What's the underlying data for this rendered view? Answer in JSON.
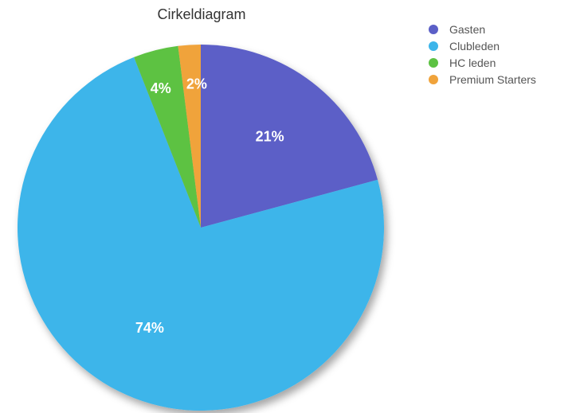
{
  "chart_data": {
    "type": "pie",
    "title": "Cirkeldiagram",
    "categories": [
      "Gasten",
      "Clubleden",
      "HC leden",
      "Premium Starters"
    ],
    "values": [
      21,
      74,
      4,
      2
    ],
    "value_labels": [
      "21%",
      "74%",
      "4%",
      "2%"
    ],
    "colors": [
      "#5b5fc7",
      "#3db5ea",
      "#5dc243",
      "#f0a33b"
    ],
    "legend_position": "top-right"
  }
}
